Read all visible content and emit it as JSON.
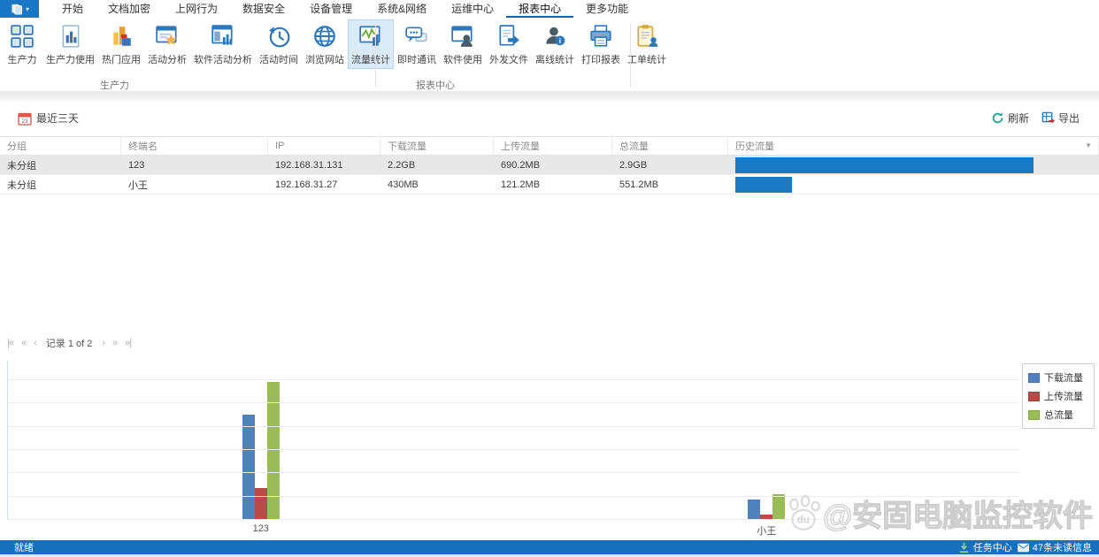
{
  "app": {
    "watermark_text": "@安固电脑监控软件",
    "watermark_badge": "du"
  },
  "menubar": {
    "tabs": [
      {
        "label": "开始",
        "selected": false
      },
      {
        "label": "文档加密",
        "selected": false
      },
      {
        "label": "上网行为",
        "selected": false
      },
      {
        "label": "数据安全",
        "selected": false
      },
      {
        "label": "设备管理",
        "selected": false
      },
      {
        "label": "系统&网络",
        "selected": false
      },
      {
        "label": "运维中心",
        "selected": false
      },
      {
        "label": "报表中心",
        "selected": true
      },
      {
        "label": "更多功能",
        "selected": false
      }
    ]
  },
  "ribbon": {
    "items": [
      {
        "label": "生产力",
        "icon": "grid-icon",
        "selected": false
      },
      {
        "label": "生产力使用",
        "icon": "document-chart-icon",
        "selected": false
      },
      {
        "label": "热门应用",
        "icon": "hot-apps-icon",
        "selected": false
      },
      {
        "label": "活动分析",
        "icon": "window-star-icon",
        "selected": false
      },
      {
        "label": "软件活动分析",
        "icon": "window-chart-icon",
        "selected": false
      },
      {
        "label": "活动时间",
        "icon": "clock-history-icon",
        "selected": false
      },
      {
        "label": "浏览网站",
        "icon": "globe-icon",
        "selected": false
      },
      {
        "label": "流量统计",
        "icon": "traffic-chart-icon",
        "selected": true
      },
      {
        "label": "即时通讯",
        "icon": "chat-icon",
        "selected": false
      },
      {
        "label": "软件使用",
        "icon": "window-user-icon",
        "selected": false
      },
      {
        "label": "外发文件",
        "icon": "file-export-icon",
        "selected": false
      },
      {
        "label": "离线统计",
        "icon": "user-info-icon",
        "selected": false
      },
      {
        "label": "打印报表",
        "icon": "printer-icon",
        "selected": false
      },
      {
        "label": "工单统计",
        "icon": "clipboard-user-icon",
        "selected": false
      }
    ],
    "groups": [
      {
        "label": "生产力"
      },
      {
        "label": "报表中心"
      }
    ]
  },
  "toolbar": {
    "date_filter_label": "最近三天",
    "calendar_day": "23",
    "refresh_label": "刷新",
    "export_label": "导出"
  },
  "table": {
    "columns": [
      "分组",
      "终端名",
      "IP",
      "下载流量",
      "上传流量",
      "总流量",
      "历史流量"
    ],
    "history_bar_color": "#1b79c4",
    "rows": [
      {
        "group": "未分组",
        "terminal": "123",
        "ip": "192.168.31.131",
        "download": "2.2GB",
        "upload": "690.2MB",
        "total": "2.9GB",
        "history_percent": 82,
        "selected": true
      },
      {
        "group": "未分组",
        "terminal": "小王",
        "ip": "192.168.31.27",
        "download": "430MB",
        "upload": "121.2MB",
        "total": "551.2MB",
        "history_percent": 15.5,
        "selected": false
      }
    ]
  },
  "pagination": {
    "record_text": "记录 1 of 2",
    "first": "|«",
    "fast_prev": "«",
    "prev": "‹",
    "next": "›",
    "fast_next": "»",
    "last": "»|"
  },
  "chart_data": {
    "type": "bar",
    "title": "",
    "xlabel": "",
    "ylabel": "",
    "unit": "MB",
    "categories": [
      "123",
      "小王"
    ],
    "series": [
      {
        "name": "下载流量",
        "color": "#4f81bd",
        "values_mb": [
          2252.8,
          430
        ]
      },
      {
        "name": "上传流量",
        "color": "#b94a48",
        "values_mb": [
          690.2,
          121.2
        ]
      },
      {
        "name": "总流量",
        "color": "#9bbb59",
        "values_mb": [
          2969.6,
          551.2
        ]
      }
    ],
    "ylim_mb": [
      0,
      3000
    ],
    "gridline_step_mb": 500,
    "grid": true,
    "legend_position": "top-right"
  },
  "statusbar": {
    "ready_text": "就绪",
    "task_center_label": "任务中心",
    "unread_label": "47条未读信息"
  }
}
